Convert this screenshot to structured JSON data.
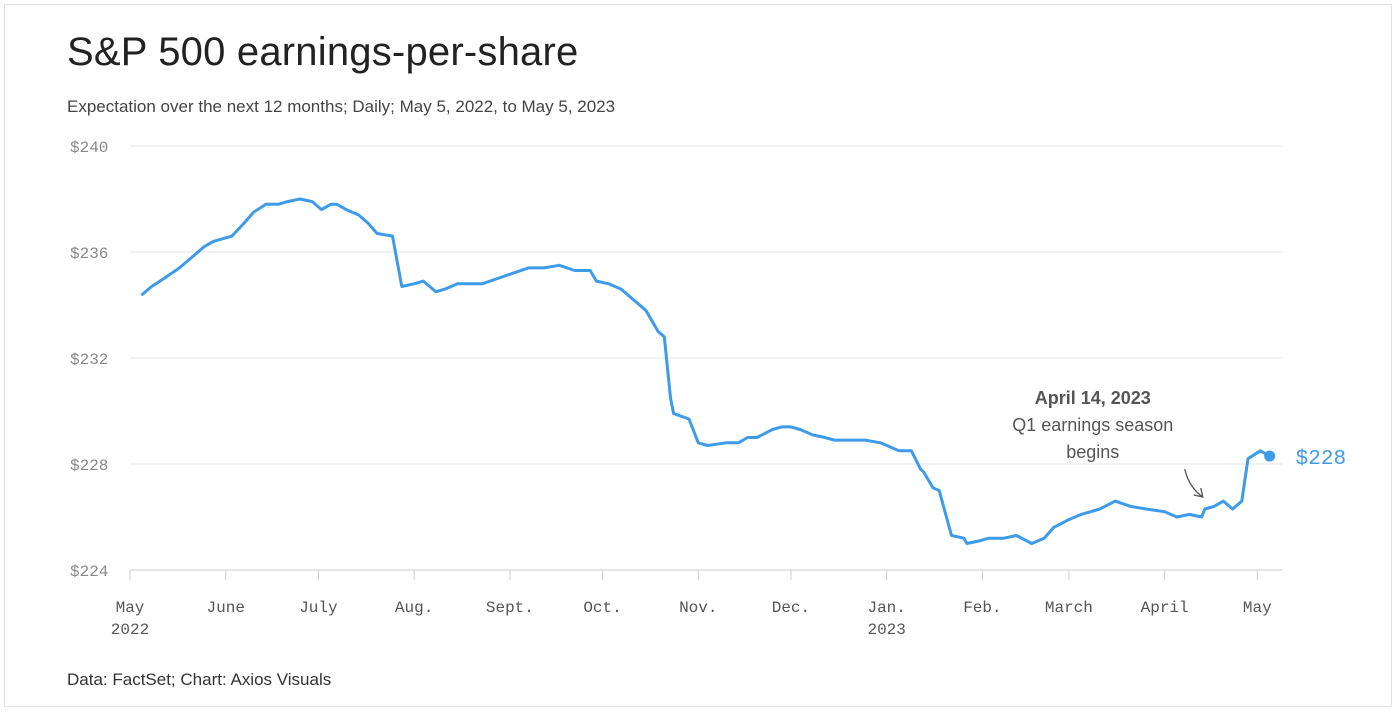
{
  "header": {
    "title": "S&P 500 earnings-per-share",
    "subtitle": "Expectation over the next 12 months; Daily; May 5, 2022, to May 5, 2023"
  },
  "footer": {
    "source": "Data: FactSet; Chart: Axios Visuals"
  },
  "colors": {
    "line": "#3d9be9",
    "grid": "#e6e6e6",
    "axis": "#cfcfcf"
  },
  "chart_data": {
    "type": "line",
    "title": "S&P 500 earnings-per-share",
    "ylim": [
      224,
      240
    ],
    "yticks": [
      224,
      228,
      232,
      236,
      240
    ],
    "ytick_labels": [
      "$224",
      "$228",
      "$232",
      "$236",
      "$240"
    ],
    "xlim": [
      "2022-05-01",
      "2023-05-09"
    ],
    "xticks": [
      {
        "date": "2022-05-01",
        "label": "May",
        "sub": "2022"
      },
      {
        "date": "2022-06-01",
        "label": "June",
        "sub": ""
      },
      {
        "date": "2022-07-01",
        "label": "July",
        "sub": ""
      },
      {
        "date": "2022-08-01",
        "label": "Aug.",
        "sub": ""
      },
      {
        "date": "2022-09-01",
        "label": "Sept.",
        "sub": ""
      },
      {
        "date": "2022-10-01",
        "label": "Oct.",
        "sub": ""
      },
      {
        "date": "2022-11-01",
        "label": "Nov.",
        "sub": ""
      },
      {
        "date": "2022-12-01",
        "label": "Dec.",
        "sub": ""
      },
      {
        "date": "2023-01-01",
        "label": "Jan.",
        "sub": "2023"
      },
      {
        "date": "2023-02-01",
        "label": "Feb.",
        "sub": ""
      },
      {
        "date": "2023-03-01",
        "label": "March",
        "sub": ""
      },
      {
        "date": "2023-04-01",
        "label": "April",
        "sub": ""
      },
      {
        "date": "2023-05-01",
        "label": "May",
        "sub": ""
      }
    ],
    "grid": true,
    "series": [
      {
        "x": [
          "2022-05-05",
          "2022-05-08",
          "2022-05-12",
          "2022-05-17",
          "2022-05-20",
          "2022-05-25",
          "2022-05-28",
          "2022-06-03",
          "2022-06-07",
          "2022-06-10",
          "2022-06-14",
          "2022-06-18",
          "2022-06-21",
          "2022-06-25",
          "2022-06-29",
          "2022-07-02",
          "2022-07-05",
          "2022-07-07",
          "2022-07-10",
          "2022-07-14",
          "2022-07-17",
          "2022-07-20",
          "2022-07-25",
          "2022-07-28",
          "2022-08-01",
          "2022-08-04",
          "2022-08-08",
          "2022-08-11",
          "2022-08-15",
          "2022-08-19",
          "2022-08-23",
          "2022-08-28",
          "2022-09-02",
          "2022-09-07",
          "2022-09-12",
          "2022-09-17",
          "2022-09-22",
          "2022-09-27",
          "2022-09-29",
          "2022-10-03",
          "2022-10-07",
          "2022-10-11",
          "2022-10-15",
          "2022-10-19",
          "2022-10-21",
          "2022-10-23",
          "2022-10-24",
          "2022-10-29",
          "2022-11-01",
          "2022-11-04",
          "2022-11-10",
          "2022-11-14",
          "2022-11-17",
          "2022-11-20",
          "2022-11-25",
          "2022-11-28",
          "2022-12-01",
          "2022-12-04",
          "2022-12-08",
          "2022-12-12",
          "2022-12-15",
          "2022-12-20",
          "2022-12-25",
          "2022-12-30",
          "2023-01-05",
          "2023-01-09",
          "2023-01-12",
          "2023-01-13",
          "2023-01-16",
          "2023-01-18",
          "2023-01-22",
          "2023-01-26",
          "2023-01-27",
          "2023-01-31",
          "2023-02-03",
          "2023-02-08",
          "2023-02-12",
          "2023-02-17",
          "2023-02-21",
          "2023-02-24",
          "2023-03-01",
          "2023-03-05",
          "2023-03-11",
          "2023-03-16",
          "2023-03-21",
          "2023-03-26",
          "2023-04-01",
          "2023-04-05",
          "2023-04-09",
          "2023-04-13",
          "2023-04-14",
          "2023-04-17",
          "2023-04-20",
          "2023-04-23",
          "2023-04-26",
          "2023-04-28",
          "2023-05-02",
          "2023-05-05"
        ],
        "y": [
          234.4,
          234.7,
          235.0,
          235.4,
          235.7,
          236.2,
          236.4,
          236.6,
          237.1,
          237.5,
          237.8,
          237.8,
          237.9,
          238.0,
          237.9,
          237.6,
          237.8,
          237.8,
          237.6,
          237.4,
          237.1,
          236.7,
          236.6,
          234.7,
          234.8,
          234.9,
          234.5,
          234.6,
          234.8,
          234.8,
          234.8,
          235.0,
          235.2,
          235.4,
          235.4,
          235.5,
          235.3,
          235.3,
          234.9,
          234.8,
          234.6,
          234.2,
          233.8,
          233.0,
          232.8,
          230.5,
          229.9,
          229.7,
          228.8,
          228.7,
          228.8,
          228.8,
          229.0,
          229.0,
          229.3,
          229.4,
          229.4,
          229.3,
          229.1,
          229.0,
          228.9,
          228.9,
          228.9,
          228.8,
          228.5,
          228.5,
          227.8,
          227.7,
          227.1,
          227.0,
          225.3,
          225.2,
          225.0,
          225.1,
          225.2,
          225.2,
          225.3,
          225.0,
          225.2,
          225.6,
          225.9,
          226.1,
          226.3,
          226.6,
          226.4,
          226.3,
          226.2,
          226.0,
          226.1,
          226.0,
          226.3,
          226.4,
          226.6,
          226.3,
          226.6,
          228.2,
          228.5,
          228.3
        ]
      }
    ],
    "end_label": {
      "date": "2023-05-05",
      "value": 228.3,
      "text": "$228"
    },
    "annotation": {
      "title": "April 14, 2023",
      "lines": [
        "Q1 earnings season",
        "begins"
      ],
      "target_date": "2023-04-14",
      "target_value": 226.3
    }
  }
}
